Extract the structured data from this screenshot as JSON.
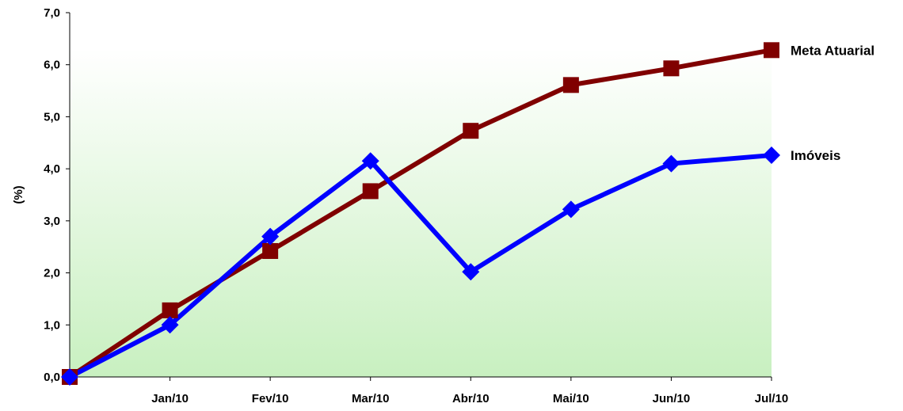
{
  "chart_data": {
    "type": "line",
    "categories": [
      "",
      "Jan/10",
      "Fev/10",
      "Mar/10",
      "Abr/10",
      "Mai/10",
      "Jun/10",
      "Jul/10"
    ],
    "ylabel": "(%)",
    "ylim": [
      0,
      7
    ],
    "yticks": [
      "0,0",
      "1,0",
      "2,0",
      "3,0",
      "4,0",
      "5,0",
      "6,0",
      "7,0"
    ],
    "grid": false,
    "background": "green-to-white vertical gradient",
    "series": [
      {
        "name": "Meta Atuarial",
        "color": "#800000",
        "marker": "square",
        "values": [
          0.0,
          1.28,
          2.42,
          3.57,
          4.73,
          5.61,
          5.93,
          6.28
        ]
      },
      {
        "name": "Imóveis",
        "color": "#0000ff",
        "marker": "diamond",
        "values": [
          0.0,
          1.0,
          2.7,
          4.15,
          2.02,
          3.22,
          4.1,
          4.26
        ]
      }
    ]
  }
}
